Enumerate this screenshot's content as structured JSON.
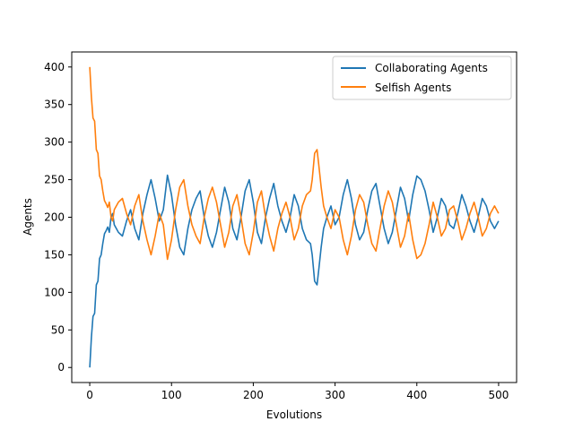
{
  "chart_data": {
    "type": "line",
    "title": "",
    "xlabel": "Evolutions",
    "ylabel": "Agents",
    "xlim": [
      -22,
      522
    ],
    "ylim": [
      -20,
      420
    ],
    "xticks": [
      0,
      100,
      200,
      300,
      400,
      500
    ],
    "yticks": [
      0,
      50,
      100,
      150,
      200,
      250,
      300,
      350,
      400
    ],
    "grid": false,
    "legend": {
      "position": "top-right"
    },
    "series": [
      {
        "name": "Collaborating Agents",
        "color": "#1f77b4",
        "x": [
          0,
          2,
          4,
          6,
          8,
          10,
          12,
          14,
          16,
          18,
          20,
          22,
          24,
          26,
          28,
          30,
          35,
          40,
          45,
          50,
          55,
          60,
          65,
          70,
          75,
          80,
          85,
          90,
          95,
          100,
          105,
          110,
          115,
          120,
          125,
          130,
          135,
          140,
          145,
          150,
          155,
          160,
          165,
          170,
          175,
          180,
          185,
          190,
          195,
          200,
          205,
          210,
          215,
          220,
          225,
          230,
          235,
          240,
          245,
          250,
          255,
          260,
          265,
          270,
          272,
          275,
          278,
          280,
          283,
          286,
          290,
          295,
          300,
          305,
          310,
          315,
          320,
          325,
          330,
          335,
          340,
          345,
          350,
          355,
          360,
          365,
          370,
          375,
          380,
          385,
          390,
          395,
          400,
          405,
          410,
          415,
          420,
          425,
          430,
          435,
          440,
          445,
          450,
          455,
          460,
          465,
          470,
          475,
          480,
          485,
          490,
          495,
          500
        ],
        "values": [
          0,
          40,
          68,
          72,
          110,
          115,
          145,
          150,
          165,
          178,
          182,
          187,
          180,
          200,
          205,
          190,
          180,
          175,
          195,
          210,
          185,
          170,
          205,
          230,
          250,
          225,
          195,
          210,
          256,
          230,
          190,
          160,
          150,
          185,
          210,
          225,
          235,
          200,
          175,
          160,
          180,
          210,
          240,
          220,
          185,
          170,
          200,
          235,
          250,
          220,
          180,
          165,
          200,
          225,
          245,
          215,
          195,
          180,
          200,
          230,
          215,
          185,
          170,
          165,
          150,
          115,
          110,
          130,
          160,
          185,
          200,
          215,
          190,
          200,
          230,
          250,
          225,
          190,
          170,
          180,
          210,
          235,
          245,
          215,
          185,
          165,
          180,
          210,
          240,
          225,
          195,
          230,
          255,
          250,
          235,
          210,
          180,
          200,
          225,
          215,
          190,
          185,
          205,
          230,
          215,
          195,
          180,
          200,
          225,
          215,
          195,
          185,
          195
        ]
      },
      {
        "name": "Selfish Agents",
        "color": "#ff7f0e",
        "x": [
          0,
          2,
          4,
          6,
          8,
          10,
          12,
          14,
          16,
          18,
          20,
          22,
          24,
          26,
          28,
          30,
          35,
          40,
          45,
          50,
          55,
          60,
          65,
          70,
          75,
          80,
          85,
          90,
          95,
          100,
          105,
          110,
          115,
          120,
          125,
          130,
          135,
          140,
          145,
          150,
          155,
          160,
          165,
          170,
          175,
          180,
          185,
          190,
          195,
          200,
          205,
          210,
          215,
          220,
          225,
          230,
          235,
          240,
          245,
          250,
          255,
          260,
          265,
          270,
          272,
          275,
          278,
          280,
          283,
          286,
          290,
          295,
          300,
          305,
          310,
          315,
          320,
          325,
          330,
          335,
          340,
          345,
          350,
          355,
          360,
          365,
          370,
          375,
          380,
          385,
          390,
          395,
          400,
          405,
          410,
          415,
          420,
          425,
          430,
          435,
          440,
          445,
          450,
          455,
          460,
          465,
          470,
          475,
          480,
          485,
          490,
          495,
          500
        ],
        "values": [
          400,
          360,
          332,
          328,
          290,
          285,
          255,
          250,
          235,
          222,
          218,
          213,
          220,
          200,
          195,
          210,
          220,
          225,
          205,
          190,
          215,
          230,
          195,
          170,
          150,
          175,
          205,
          190,
          144,
          170,
          210,
          240,
          250,
          215,
          190,
          175,
          165,
          200,
          225,
          240,
          220,
          190,
          160,
          180,
          215,
          230,
          200,
          165,
          150,
          180,
          220,
          235,
          200,
          175,
          155,
          185,
          205,
          220,
          200,
          170,
          185,
          215,
          230,
          235,
          250,
          285,
          290,
          270,
          240,
          215,
          200,
          185,
          210,
          200,
          170,
          150,
          175,
          210,
          230,
          220,
          190,
          165,
          155,
          185,
          215,
          235,
          220,
          190,
          160,
          175,
          205,
          170,
          145,
          150,
          165,
          190,
          220,
          200,
          175,
          185,
          210,
          215,
          195,
          170,
          185,
          205,
          220,
          200,
          175,
          185,
          205,
          215,
          205
        ]
      }
    ]
  }
}
